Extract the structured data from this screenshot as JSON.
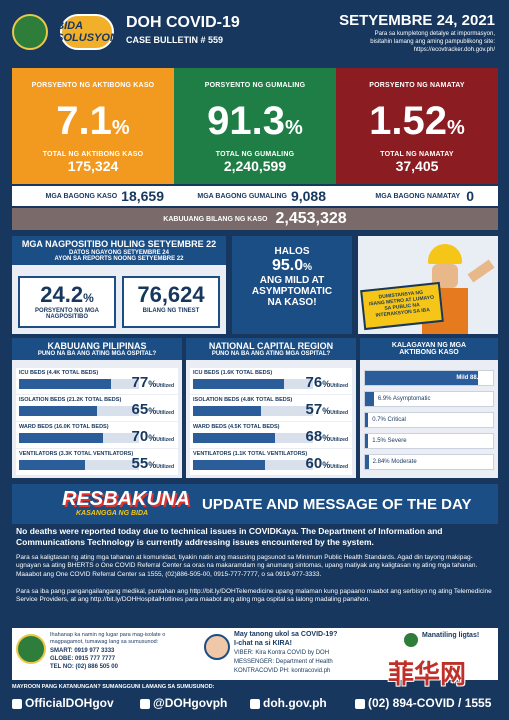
{
  "header": {
    "title": "DOH COVID-19",
    "bulletin": "CASE BULLETIN # 559",
    "date": "SETYEMBRE 24, 2021",
    "note1": "Para sa kumpletong detalye at impormasyon,",
    "note2": "bisitahin lamang ang aming pampublikong site:",
    "note3": "https://ecovtracker.doh.gov.ph/",
    "bida_logo": "BIDA SOLUSYON"
  },
  "active": {
    "label": "PORSYENTO NG AKTIBONG KASO",
    "pct": "7.1",
    "pct_sign": "%",
    "total_label": "TOTAL NG AKTIBONG KASO",
    "total": "175,324",
    "color": "#f29a1f"
  },
  "recovered": {
    "label": "PORSYENTO NG GUMALING",
    "pct": "91.3",
    "pct_sign": "%",
    "total_label": "TOTAL NG GUMALING",
    "total": "2,240,599",
    "color": "#1e7e46"
  },
  "deaths": {
    "label": "PORSYENTO NG NAMATAY",
    "pct": "1.52",
    "pct_sign": "%",
    "total_label": "TOTAL NG NAMATAY",
    "total": "37,405",
    "color": "#8a1c22"
  },
  "new": {
    "cases_label": "MGA BAGONG KASO",
    "cases": "18,659",
    "recovered_label": "MGA BAGONG GUMALING",
    "recovered": "9,088",
    "deaths_label": "MGA BAGONG NAMATAY",
    "deaths": "0"
  },
  "total_cases": {
    "label": "KABUUANG BILANG NG KASO",
    "value": "2,453,328"
  },
  "positivity": {
    "title": "MGA NAGPOSITIBO HULING SETYEMBRE 22",
    "sub1": "DATOS NGAYONG SETYEMBRE 24",
    "sub2": "AYON SA REPORTS NOONG SETYEMBRE 22",
    "rate": "24.2",
    "rate_sign": "%",
    "rate_label": "PORSYENTO NG MGA NAGPOSITIBO",
    "tested": "76,624",
    "tested_label": "BILANG NG TINEST"
  },
  "mild": {
    "line1": "HALOS",
    "pct": "95.0",
    "pct_sign": "%",
    "line2": "ANG MILD AT",
    "line3": "ASYMPTOMATIC",
    "line4": "NA KASO!"
  },
  "poster": {
    "text1": "DUMISTANSYA NG",
    "text2": "ISANG METRO AT LUMAYO",
    "text3": "SA PUBLIC NA",
    "text4": "INTERAKSYON SA IBA"
  },
  "ph": {
    "title": "KABUUANG PILIPINAS",
    "subtitle": "PUNO NA BA ANG ATING MGA OSPITAL?",
    "rows": [
      {
        "label": "ICU BEDS (4.4K TOTAL BEDS)",
        "value": "77",
        "pct": 77
      },
      {
        "label": "ISOLATION BEDS (21.2K TOTAL BEDS)",
        "value": "65",
        "pct": 65
      },
      {
        "label": "WARD BEDS (16.0K TOTAL BEDS)",
        "value": "70",
        "pct": 70
      },
      {
        "label": "VENTILATORS (3.3K TOTAL VENTILATORS)",
        "value": "55",
        "pct": 55
      }
    ]
  },
  "ncr": {
    "title": "NATIONAL CAPITAL REGION",
    "subtitle": "PUNO NA BA ANG ATING MGA OSPITAL?",
    "rows": [
      {
        "label": "ICU BEDS (1.6K TOTAL BEDS)",
        "value": "76",
        "pct": 76
      },
      {
        "label": "ISOLATION BEDS (4.8K TOTAL BEDS)",
        "value": "57",
        "pct": 57
      },
      {
        "label": "WARD BEDS (4.5K TOTAL BEDS)",
        "value": "68",
        "pct": 68
      },
      {
        "label": "VENTILATORS (1.1K TOTAL VENTILATORS)",
        "value": "60",
        "pct": 60
      }
    ]
  },
  "utilized": "Utilized",
  "pct_sign": "%",
  "severity": {
    "title": "KALAGAYAN NG MGA AKTIBONG KASO",
    "rows": [
      {
        "label": "Mild 88.1%",
        "pct": 88.1
      },
      {
        "label": "6.9% Asymptomatic",
        "pct": 6.9
      },
      {
        "label": "0.7% Critical",
        "pct": 0.7
      },
      {
        "label": "1.5% Severe",
        "pct": 1.5
      },
      {
        "label": "2.84% Moderate",
        "pct": 2.84
      }
    ]
  },
  "update": {
    "logo1": "RESBAKUNA",
    "logo2": "KASANGGA NG BIDA",
    "title": "UPDATE AND MESSAGE OF THE DAY",
    "main": "No deaths were reported today due to technical issues in COVIDKaya. The Department of Information and Communications Technology is currently addressing issues encountered by the system.",
    "p1": "Para sa kaligtasan ng ating mga tahanan at komunidad, tiyakin natin ang masusing pagsunod sa Minimum Public Health Standards. Agad din tayong makipag-ugnayan sa ating BHERTS o One COVID Referral Center sa oras na makaramdam ng anumang sintomas, upang matiyak ang kaligtasan ng ating mga tahanan. Maaabot ang One COVID Referral Center sa 1555, (02)886-505-00, 0915-777-7777, o sa 0919-977-3333.",
    "p2": "Para sa iba pang pangangailangang medikal, puntahan ang http://bit.ly/DOHTelemedicine upang malaman kung papaano maabot ang serbisyo ng ating Telemedicine Service Providers, at ang http://bit.ly/DOHHospitalHotlines para maabot ang ating mga ospital sa lalong madaling panahon."
  },
  "contacts": {
    "left_title": "Ihahanap ka namin ng lugar para mag-isolate o magpagamot, tumawag lang sa sumusunod:",
    "smart": "SMART: 0919 977 3333",
    "globe": "GLOBE: 0915 777 7777",
    "tel": "TEL NO: (02) 886 505 00",
    "mid_title": "May tanong ukol sa COVID-19?",
    "mid_sub": "I-chat na si KIRA!",
    "viber": "VIBER: Kira Kontra COVID by DOH",
    "messenger": "MESSENGER: Department of Health",
    "kontra": "KONTRACOVID PH: kontracovid.ph",
    "right": "Manatiling ligtas!"
  },
  "footer": {
    "question": "MAYROON PANG KATANUNGAN? SUMANGGUNI LAMANG SA SUMUSUNOD:",
    "fb": "OfficialDOHgov",
    "tw": "@DOHgovph",
    "web": "doh.gov.ph",
    "phone": "(02) 894-COVID / 1555"
  },
  "watermark": "菲华网"
}
